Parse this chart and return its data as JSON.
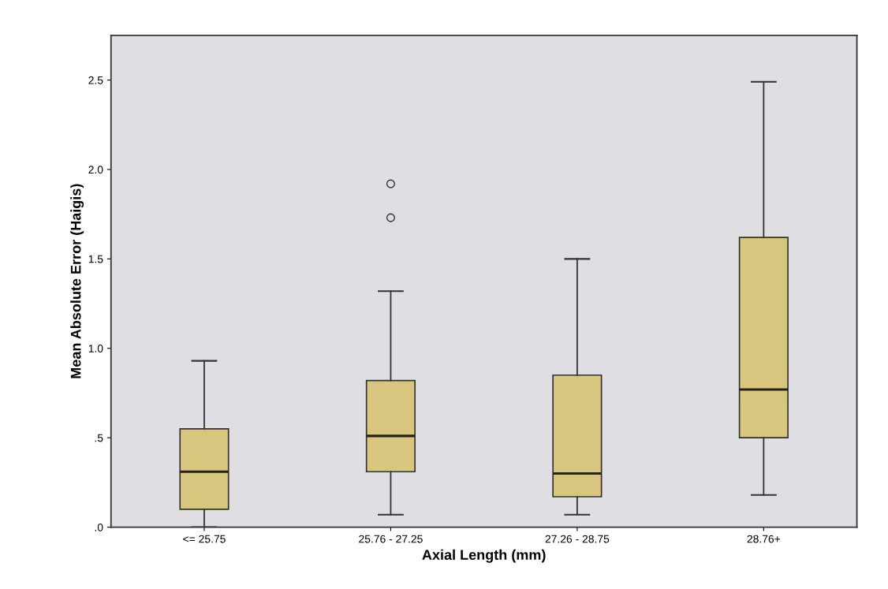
{
  "chart_data": {
    "type": "box",
    "xlabel": "Axial Length (mm)",
    "ylabel": "Mean Absolute Error (Haigis)",
    "categories": [
      "<= 25.75",
      "25.76 - 27.25",
      "27.26 - 28.75",
      "28.76+"
    ],
    "boxes": [
      {
        "low": 0.0,
        "q1": 0.1,
        "median": 0.31,
        "q3": 0.55,
        "high": 0.93
      },
      {
        "low": 0.07,
        "q1": 0.31,
        "median": 0.51,
        "q3": 0.82,
        "high": 1.32,
        "outliers": [
          1.73,
          1.92
        ]
      },
      {
        "low": 0.07,
        "q1": 0.17,
        "median": 0.3,
        "q3": 0.85,
        "high": 1.5
      },
      {
        "low": 0.18,
        "q1": 0.5,
        "median": 0.77,
        "q3": 1.62,
        "high": 2.49
      }
    ],
    "color": "#d8c67e",
    "ylim": [
      0,
      2.75
    ],
    "yticks": [
      {
        "value": 0,
        "label": ".0"
      },
      {
        "value": 0.5,
        "label": ".5"
      },
      {
        "value": 1,
        "label": "1.0"
      },
      {
        "value": 1.5,
        "label": "1.5"
      },
      {
        "value": 2,
        "label": "2.0"
      },
      {
        "value": 2.5,
        "label": "2.5"
      }
    ],
    "grid": false
  }
}
